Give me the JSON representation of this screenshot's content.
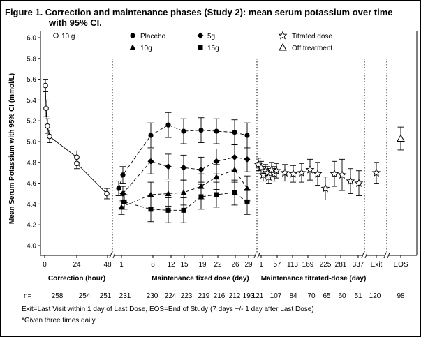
{
  "chart_data": {
    "type": "line",
    "title": "Figure 1. Correction and maintenance phases (Study 2): mean serum potassium over time with 95% CI.",
    "title_line1": "Figure 1. Correction and maintenance phases (Study 2): mean serum potassium over time",
    "title_line2": "with 95% CI.",
    "ylabel": "Mean Serum Potassium with 95% CI (mmol/L)",
    "ylim": [
      3.9,
      6.1
    ],
    "yticks": [
      "4.0",
      "4.2",
      "4.4",
      "4.6",
      "4.8",
      "5.0",
      "5.2",
      "5.4",
      "5.6",
      "5.8",
      "6.0"
    ],
    "phases": [
      {
        "name": "Correction (hour)",
        "ticks": [
          "0",
          "24",
          "48"
        ]
      },
      {
        "name": "Maintenance fixed dose (day)",
        "ticks": [
          "1",
          "8",
          "12",
          "15",
          "19",
          "22",
          "26",
          "29"
        ]
      },
      {
        "name": "Maintenance titrated-dose (day)",
        "ticks": [
          "1",
          "57",
          "113",
          "169",
          "225",
          "281",
          "337"
        ]
      },
      {
        "name": "",
        "ticks": [
          "Exit"
        ]
      },
      {
        "name": "",
        "ticks": [
          "EOS"
        ]
      }
    ],
    "legend": {
      "correction": "10 g",
      "placebo": "Placebo",
      "g10": "10g",
      "g5": "5g",
      "g15": "15g",
      "titrated": "Titrated dose",
      "off": "Off treatment"
    },
    "series": [
      {
        "name": "10 g (correction)",
        "marker": "open-circle",
        "points": [
          {
            "x": "0 h",
            "mean": 5.54,
            "lo": 5.48,
            "hi": 5.6
          },
          {
            "x": "1 h",
            "mean": 5.32,
            "lo": 5.24,
            "hi": 5.4
          },
          {
            "x": "2 h",
            "mean": 5.15,
            "lo": 5.08,
            "hi": 5.22
          },
          {
            "x": "4 h",
            "mean": 5.05,
            "lo": 4.99,
            "hi": 5.11
          },
          {
            "x": "24 h",
            "mean": 4.85,
            "lo": 4.8,
            "hi": 4.91
          },
          {
            "x": "24 h",
            "mean": 4.79,
            "lo": 4.74,
            "hi": 4.84
          },
          {
            "x": "48 h",
            "mean": 4.5,
            "lo": 4.45,
            "hi": 4.55
          }
        ]
      },
      {
        "name": "Placebo",
        "marker": "filled-circle",
        "points": [
          {
            "x": "1",
            "mean": 4.55,
            "lo": 4.48,
            "hi": 4.62
          },
          {
            "x": "1",
            "mean": 4.68,
            "lo": 4.6,
            "hi": 4.76
          },
          {
            "x": "8",
            "mean": 5.06,
            "lo": 4.94,
            "hi": 5.18
          },
          {
            "x": "12",
            "mean": 5.16,
            "lo": 5.04,
            "hi": 5.28
          },
          {
            "x": "15",
            "mean": 5.1,
            "lo": 4.98,
            "hi": 5.22
          },
          {
            "x": "19",
            "mean": 5.11,
            "lo": 4.99,
            "hi": 5.23
          },
          {
            "x": "22",
            "mean": 5.1,
            "lo": 4.98,
            "hi": 5.22
          },
          {
            "x": "26",
            "mean": 5.09,
            "lo": 4.97,
            "hi": 5.21
          },
          {
            "x": "29",
            "mean": 5.06,
            "lo": 4.94,
            "hi": 5.18
          }
        ]
      },
      {
        "name": "5g",
        "marker": "filled-diamond",
        "points": [
          {
            "x": "1",
            "mean": 4.5,
            "lo": 4.43,
            "hi": 4.57
          },
          {
            "x": "8",
            "mean": 4.81,
            "lo": 4.69,
            "hi": 4.93
          },
          {
            "x": "12",
            "mean": 4.76,
            "lo": 4.64,
            "hi": 4.88
          },
          {
            "x": "15",
            "mean": 4.75,
            "lo": 4.63,
            "hi": 4.87
          },
          {
            "x": "19",
            "mean": 4.73,
            "lo": 4.61,
            "hi": 4.85
          },
          {
            "x": "22",
            "mean": 4.81,
            "lo": 4.69,
            "hi": 4.93
          },
          {
            "x": "26",
            "mean": 4.85,
            "lo": 4.73,
            "hi": 4.97
          },
          {
            "x": "29",
            "mean": 4.83,
            "lo": 4.71,
            "hi": 4.95
          }
        ]
      },
      {
        "name": "10g",
        "marker": "filled-triangle",
        "points": [
          {
            "x": "1",
            "mean": 4.37,
            "lo": 4.3,
            "hi": 4.44
          },
          {
            "x": "8",
            "mean": 4.49,
            "lo": 4.37,
            "hi": 4.61
          },
          {
            "x": "12",
            "mean": 4.5,
            "lo": 4.38,
            "hi": 4.62
          },
          {
            "x": "15",
            "mean": 4.51,
            "lo": 4.39,
            "hi": 4.63
          },
          {
            "x": "19",
            "mean": 4.57,
            "lo": 4.45,
            "hi": 4.69
          },
          {
            "x": "22",
            "mean": 4.66,
            "lo": 4.54,
            "hi": 4.78
          },
          {
            "x": "26",
            "mean": 4.73,
            "lo": 4.61,
            "hi": 4.85
          },
          {
            "x": "29",
            "mean": 4.55,
            "lo": 4.43,
            "hi": 4.67
          }
        ]
      },
      {
        "name": "15g",
        "marker": "filled-square",
        "points": [
          {
            "x": "1",
            "mean": 4.42,
            "lo": 4.35,
            "hi": 4.49
          },
          {
            "x": "8",
            "mean": 4.35,
            "lo": 4.23,
            "hi": 4.47
          },
          {
            "x": "12",
            "mean": 4.34,
            "lo": 4.22,
            "hi": 4.46
          },
          {
            "x": "15",
            "mean": 4.34,
            "lo": 4.22,
            "hi": 4.46
          },
          {
            "x": "19",
            "mean": 4.47,
            "lo": 4.35,
            "hi": 4.59
          },
          {
            "x": "22",
            "mean": 4.49,
            "lo": 4.37,
            "hi": 4.61
          },
          {
            "x": "26",
            "mean": 4.51,
            "lo": 4.39,
            "hi": 4.63
          },
          {
            "x": "29",
            "mean": 4.42,
            "lo": 4.3,
            "hi": 4.54
          }
        ]
      },
      {
        "name": "Titrated dose",
        "marker": "open-star",
        "points": [
          {
            "x": "1",
            "mean": 4.78,
            "lo": 4.72,
            "hi": 4.84
          },
          {
            "x": "8",
            "mean": 4.75,
            "lo": 4.69,
            "hi": 4.81
          },
          {
            "x": "15",
            "mean": 4.68,
            "lo": 4.62,
            "hi": 4.74
          },
          {
            "x": "22",
            "mean": 4.72,
            "lo": 4.66,
            "hi": 4.78
          },
          {
            "x": "29",
            "mean": 4.7,
            "lo": 4.64,
            "hi": 4.76
          },
          {
            "x": "36",
            "mean": 4.66,
            "lo": 4.6,
            "hi": 4.72
          },
          {
            "x": "43",
            "mean": 4.73,
            "lo": 4.66,
            "hi": 4.8
          },
          {
            "x": "50",
            "mean": 4.69,
            "lo": 4.62,
            "hi": 4.76
          },
          {
            "x": "57",
            "mean": 4.72,
            "lo": 4.65,
            "hi": 4.79
          },
          {
            "x": "85",
            "mean": 4.7,
            "lo": 4.62,
            "hi": 4.78
          },
          {
            "x": "113",
            "mean": 4.69,
            "lo": 4.61,
            "hi": 4.77
          },
          {
            "x": "141",
            "mean": 4.7,
            "lo": 4.61,
            "hi": 4.79
          },
          {
            "x": "169",
            "mean": 4.73,
            "lo": 4.63,
            "hi": 4.83
          },
          {
            "x": "197",
            "mean": 4.69,
            "lo": 4.58,
            "hi": 4.8
          },
          {
            "x": "225",
            "mean": 4.55,
            "lo": 4.44,
            "hi": 4.66
          },
          {
            "x": "253",
            "mean": 4.69,
            "lo": 4.57,
            "hi": 4.81
          },
          {
            "x": "281",
            "mean": 4.68,
            "lo": 4.53,
            "hi": 4.83
          },
          {
            "x": "309",
            "mean": 4.62,
            "lo": 4.5,
            "hi": 4.74
          },
          {
            "x": "337",
            "mean": 4.6,
            "lo": 4.48,
            "hi": 4.72
          },
          {
            "x": "Exit",
            "mean": 4.7,
            "lo": 4.6,
            "hi": 4.8
          }
        ]
      },
      {
        "name": "Off treatment",
        "marker": "open-triangle",
        "points": [
          {
            "x": "EOS",
            "mean": 5.03,
            "lo": 4.92,
            "hi": 5.14
          }
        ]
      }
    ],
    "n_label": "n=",
    "n_values": [
      "258",
      "254",
      "251",
      "231",
      "230",
      "224",
      "223",
      "219",
      "216",
      "212",
      "193",
      "121",
      "107",
      "84",
      "70",
      "65",
      "60",
      "51",
      "120",
      "98"
    ]
  },
  "footnotes": {
    "line1": "Exit=Last Visit within 1 day of Last Dose, EOS=End of Study (7 days +/- 1 day after Last Dose)",
    "line2": "*Given three times daily"
  }
}
